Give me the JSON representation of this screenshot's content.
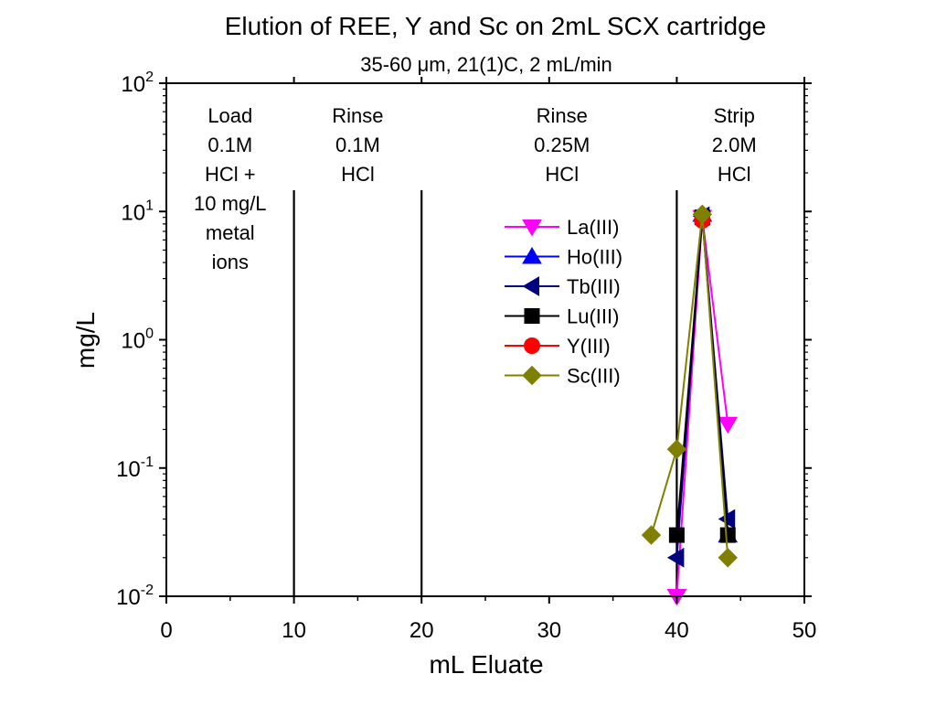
{
  "chart_data": {
    "type": "scatter",
    "title": "Elution of REE, Y and Sc on 2mL SCX cartridge",
    "subtitle": "35-60 μm, 21(1)C, 2 mL/min",
    "xlabel": "mL Eluate",
    "ylabel": "mg/L",
    "xlim": [
      0,
      50
    ],
    "ylim": [
      0.01,
      100
    ],
    "yscale": "log",
    "grid": false,
    "legend_position": "center-right",
    "x_ticks": [
      {
        "value": 0,
        "label": "0"
      },
      {
        "value": 10,
        "label": "10"
      },
      {
        "value": 20,
        "label": "20"
      },
      {
        "value": 30,
        "label": "30"
      },
      {
        "value": 40,
        "label": "40"
      },
      {
        "value": 50,
        "label": "50"
      }
    ],
    "y_ticks": [
      {
        "value": 0.01,
        "base": "10",
        "exp": "-2"
      },
      {
        "value": 0.1,
        "base": "10",
        "exp": "-1"
      },
      {
        "value": 1,
        "base": "10",
        "exp": "0"
      },
      {
        "value": 10,
        "base": "10",
        "exp": "1"
      },
      {
        "value": 100,
        "base": "10",
        "exp": "2"
      }
    ],
    "phase_dividers": [
      10,
      20,
      40
    ],
    "phases": [
      {
        "x": 5,
        "lines": [
          "Load",
          "0.1M",
          "HCl +",
          "10 mg/L",
          "metal",
          "ions"
        ]
      },
      {
        "x": 15,
        "lines": [
          "Rinse",
          "0.1M",
          "HCl"
        ]
      },
      {
        "x": 31,
        "lines": [
          "Rinse",
          "0.25M",
          "HCl"
        ]
      },
      {
        "x": 44.5,
        "lines": [
          "Strip",
          "2.0M",
          "HCl"
        ]
      }
    ],
    "series": [
      {
        "name": "La(III)",
        "color": "#ff00ff",
        "marker": "triangle-down",
        "x": [
          40,
          42,
          44
        ],
        "y": [
          0.01,
          9,
          0.22
        ]
      },
      {
        "name": "Ho(III)",
        "color": "#0000ff",
        "marker": "triangle-up",
        "x": [
          42,
          44
        ],
        "y": [
          9.5,
          0.03
        ]
      },
      {
        "name": "Tb(III)",
        "color": "#000080",
        "marker": "triangle-left",
        "x": [
          40,
          42,
          44
        ],
        "y": [
          0.02,
          9.2,
          0.04
        ]
      },
      {
        "name": "Lu(III)",
        "color": "#000000",
        "marker": "square",
        "x": [
          40,
          42,
          44
        ],
        "y": [
          0.03,
          9.0,
          0.03
        ]
      },
      {
        "name": "Y(III)",
        "color": "#ff0000",
        "marker": "circle",
        "x": [
          42
        ],
        "y": [
          8.5
        ]
      },
      {
        "name": "Sc(III)",
        "color": "#808000",
        "marker": "diamond",
        "x": [
          38,
          40,
          42,
          44
        ],
        "y": [
          0.03,
          0.14,
          9.5,
          0.02
        ]
      }
    ]
  }
}
